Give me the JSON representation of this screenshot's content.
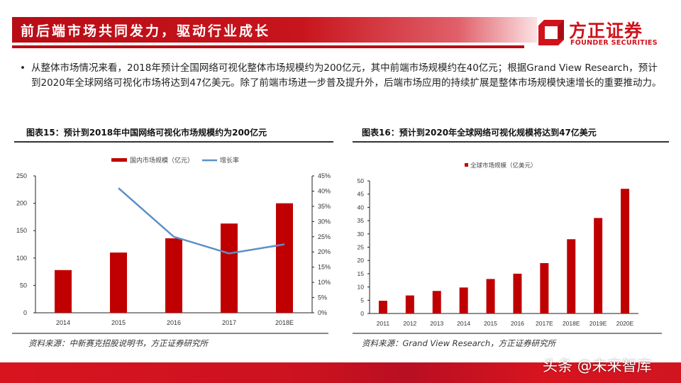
{
  "header": {
    "title": "前后端市场共同发力，驱动行业成长",
    "logo_cn": "方正证券",
    "logo_en": "FOUNDER SECURITIES",
    "brand_color": "#c8141c"
  },
  "body": {
    "bullet": "从整体市场情况来看，2018年预计全国网络可视化整体市场规模约为200亿元，其中前端市场规模约在40亿元；根据Grand View Research，预计到2020年全球网络可视化市场将达到47亿美元。除了前端市场进一步普及提升外，后端市场应用的持续扩展是整体市场规模快速增长的重要推动力。"
  },
  "figures": [
    {
      "title": "图表15：预计到2018年中国网络可视化市场规模约为200亿元",
      "source": "资料来源：中新赛克招股说明书，方正证券研究所"
    },
    {
      "title": "图表16：预计到2020年全球网络可视化规模将达到47亿美元",
      "source": "资料来源：Grand View Research，方正证券研究所"
    }
  ],
  "watermark": "头条 @未来智库",
  "chart_data": [
    {
      "type": "bar",
      "title": "图表15：预计到2018年中国网络可视化市场规模约为200亿元",
      "categories": [
        "2014",
        "2015",
        "2016",
        "2017",
        "2018E"
      ],
      "series": [
        {
          "name": "国内市场规模（亿元）",
          "type": "bar",
          "axis": "left",
          "color": "#c00000",
          "values": [
            78,
            110,
            136,
            163,
            200
          ]
        },
        {
          "name": "增长率",
          "type": "line",
          "axis": "right",
          "color": "#5b8fc7",
          "values": [
            null,
            41,
            25,
            19.5,
            22.5
          ]
        }
      ],
      "ylabel": "",
      "xlabel": "",
      "ylim": [
        0,
        250
      ],
      "yticks": [
        "0",
        "50",
        "100",
        "150",
        "200",
        "250"
      ],
      "y2lim": [
        0,
        45
      ],
      "y2ticks": [
        "0%",
        "5%",
        "10%",
        "15%",
        "20%",
        "25%",
        "30%",
        "35%",
        "40%",
        "45%"
      ],
      "legend_position": "top",
      "grid": false
    },
    {
      "type": "bar",
      "title": "图表16：预计到2020年全球网络可视化规模将达到47亿美元",
      "categories": [
        "2011",
        "2012",
        "2013",
        "2014",
        "2015",
        "2016",
        "2017E",
        "2018E",
        "2019E",
        "2020E"
      ],
      "series": [
        {
          "name": "全球市场规模（亿美元）",
          "color": "#c00000",
          "values": [
            4.8,
            6.8,
            8.5,
            9.8,
            13,
            15,
            19,
            28,
            36,
            47
          ]
        }
      ],
      "ylabel": "",
      "xlabel": "",
      "ylim": [
        0,
        50
      ],
      "yticks": [
        "0",
        "5",
        "10",
        "15",
        "20",
        "25",
        "30",
        "35",
        "40",
        "45",
        "50"
      ],
      "legend_position": "top",
      "grid": false
    }
  ]
}
